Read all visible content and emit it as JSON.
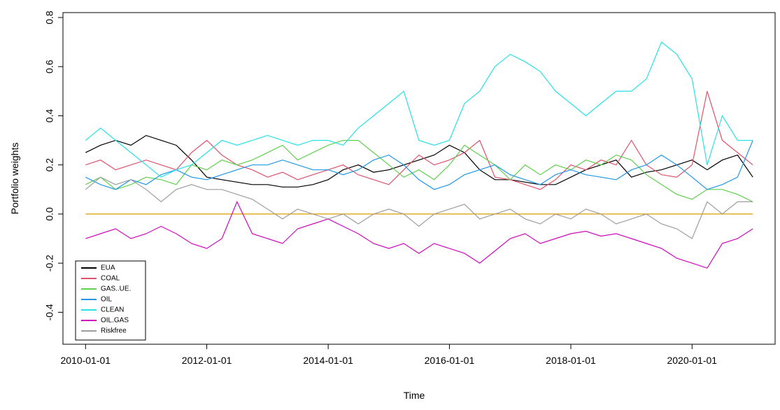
{
  "chart_data": {
    "type": "line",
    "x_label": "Time",
    "y_label": "Portfolio weights",
    "x": [
      "2010-01-01",
      "2010-04-01",
      "2010-07-01",
      "2010-10-01",
      "2011-01-01",
      "2011-04-01",
      "2011-07-01",
      "2011-10-01",
      "2012-01-01",
      "2012-04-01",
      "2012-07-01",
      "2012-10-01",
      "2013-01-01",
      "2013-04-01",
      "2013-07-01",
      "2013-10-01",
      "2014-01-01",
      "2014-04-01",
      "2014-07-01",
      "2014-10-01",
      "2015-01-01",
      "2015-04-01",
      "2015-07-01",
      "2015-10-01",
      "2016-01-01",
      "2016-04-01",
      "2016-07-01",
      "2016-10-01",
      "2017-01-01",
      "2017-04-01",
      "2017-07-01",
      "2017-10-01",
      "2018-01-01",
      "2018-04-01",
      "2018-07-01",
      "2018-10-01",
      "2019-01-01",
      "2019-04-01",
      "2019-07-01",
      "2019-10-01",
      "2020-01-01",
      "2020-04-01",
      "2020-07-01",
      "2020-10-01",
      "2021-01-01"
    ],
    "series": [
      {
        "name": "EUA",
        "color": "#000000",
        "values": [
          0.25,
          0.28,
          0.3,
          0.28,
          0.32,
          0.3,
          0.28,
          0.22,
          0.15,
          0.14,
          0.13,
          0.12,
          0.12,
          0.11,
          0.11,
          0.12,
          0.14,
          0.18,
          0.2,
          0.17,
          0.18,
          0.2,
          0.22,
          0.24,
          0.28,
          0.25,
          0.18,
          0.14,
          0.14,
          0.13,
          0.12,
          0.12,
          0.15,
          0.18,
          0.2,
          0.22,
          0.15,
          0.17,
          0.18,
          0.2,
          0.22,
          0.18,
          0.22,
          0.24,
          0.15
        ]
      },
      {
        "name": "COAL",
        "color": "#DF536B",
        "values": [
          0.2,
          0.22,
          0.18,
          0.2,
          0.22,
          0.2,
          0.18,
          0.25,
          0.3,
          0.24,
          0.2,
          0.18,
          0.15,
          0.17,
          0.14,
          0.16,
          0.18,
          0.2,
          0.16,
          0.14,
          0.12,
          0.18,
          0.24,
          0.2,
          0.22,
          0.25,
          0.3,
          0.15,
          0.14,
          0.12,
          0.1,
          0.14,
          0.2,
          0.18,
          0.22,
          0.2,
          0.3,
          0.2,
          0.16,
          0.15,
          0.2,
          0.5,
          0.3,
          0.25,
          0.2
        ]
      },
      {
        "name": "GAS..UE.",
        "color": "#61D04F",
        "values": [
          0.12,
          0.15,
          0.1,
          0.12,
          0.15,
          0.14,
          0.12,
          0.2,
          0.18,
          0.22,
          0.2,
          0.22,
          0.25,
          0.28,
          0.22,
          0.25,
          0.28,
          0.3,
          0.3,
          0.25,
          0.2,
          0.15,
          0.18,
          0.14,
          0.2,
          0.28,
          0.24,
          0.2,
          0.14,
          0.2,
          0.16,
          0.2,
          0.18,
          0.22,
          0.2,
          0.24,
          0.22,
          0.16,
          0.12,
          0.08,
          0.06,
          0.1,
          0.1,
          0.08,
          0.05
        ]
      },
      {
        "name": "OIL",
        "color": "#2297E6",
        "values": [
          0.15,
          0.12,
          0.1,
          0.14,
          0.12,
          0.16,
          0.18,
          0.15,
          0.14,
          0.16,
          0.18,
          0.2,
          0.2,
          0.22,
          0.2,
          0.18,
          0.18,
          0.16,
          0.18,
          0.22,
          0.24,
          0.2,
          0.14,
          0.1,
          0.12,
          0.16,
          0.18,
          0.2,
          0.16,
          0.14,
          0.12,
          0.16,
          0.18,
          0.16,
          0.15,
          0.14,
          0.18,
          0.2,
          0.24,
          0.2,
          0.15,
          0.1,
          0.12,
          0.15,
          0.3
        ]
      },
      {
        "name": "CLEAN",
        "color": "#28E2E5",
        "values": [
          0.3,
          0.35,
          0.3,
          0.25,
          0.2,
          0.15,
          0.18,
          0.2,
          0.25,
          0.3,
          0.28,
          0.3,
          0.32,
          0.3,
          0.28,
          0.3,
          0.3,
          0.28,
          0.35,
          0.4,
          0.45,
          0.5,
          0.3,
          0.28,
          0.3,
          0.45,
          0.5,
          0.6,
          0.65,
          0.62,
          0.58,
          0.5,
          0.45,
          0.4,
          0.45,
          0.5,
          0.5,
          0.55,
          0.7,
          0.65,
          0.55,
          0.2,
          0.4,
          0.3,
          0.3
        ]
      },
      {
        "name": "OIL.GAS",
        "color": "#CD0BBC",
        "values": [
          -0.1,
          -0.08,
          -0.06,
          -0.1,
          -0.08,
          -0.05,
          -0.08,
          -0.12,
          -0.14,
          -0.1,
          0.05,
          -0.08,
          -0.1,
          -0.12,
          -0.06,
          -0.04,
          -0.02,
          -0.05,
          -0.08,
          -0.12,
          -0.14,
          -0.12,
          -0.16,
          -0.12,
          -0.14,
          -0.16,
          -0.2,
          -0.15,
          -0.1,
          -0.08,
          -0.12,
          -0.1,
          -0.08,
          -0.07,
          -0.09,
          -0.08,
          -0.1,
          -0.12,
          -0.14,
          -0.18,
          -0.2,
          -0.22,
          -0.12,
          -0.1,
          -0.06
        ]
      },
      {
        "name": "Riskfree",
        "color": "#9E9E9E",
        "values": [
          0.1,
          0.15,
          0.12,
          0.14,
          0.1,
          0.05,
          0.1,
          0.12,
          0.1,
          0.1,
          0.08,
          0.06,
          0.02,
          -0.02,
          0.02,
          0.0,
          -0.02,
          0.0,
          -0.04,
          0.0,
          0.02,
          0.0,
          -0.05,
          0.0,
          0.02,
          0.04,
          -0.02,
          0.0,
          0.02,
          -0.02,
          -0.04,
          0.0,
          -0.02,
          0.02,
          0.0,
          -0.04,
          -0.02,
          0.0,
          -0.04,
          -0.06,
          -0.1,
          0.05,
          0.0,
          0.05,
          0.05
        ]
      }
    ],
    "reference_line": {
      "value": 0,
      "color": "#DF9B00"
    },
    "xlim": [
      "2009-08-18",
      "2021-05-15"
    ],
    "xticks": [
      "2010-01-01",
      "2012-01-01",
      "2014-01-01",
      "2016-01-01",
      "2018-01-01",
      "2020-01-01"
    ],
    "ylim": [
      -0.53,
      0.82
    ],
    "yticks": [
      -0.4,
      -0.2,
      {
        "value": 0,
        "label": "0.0"
      },
      0.2,
      0.4,
      0.6,
      0.8
    ],
    "legend": "bottom-left"
  }
}
